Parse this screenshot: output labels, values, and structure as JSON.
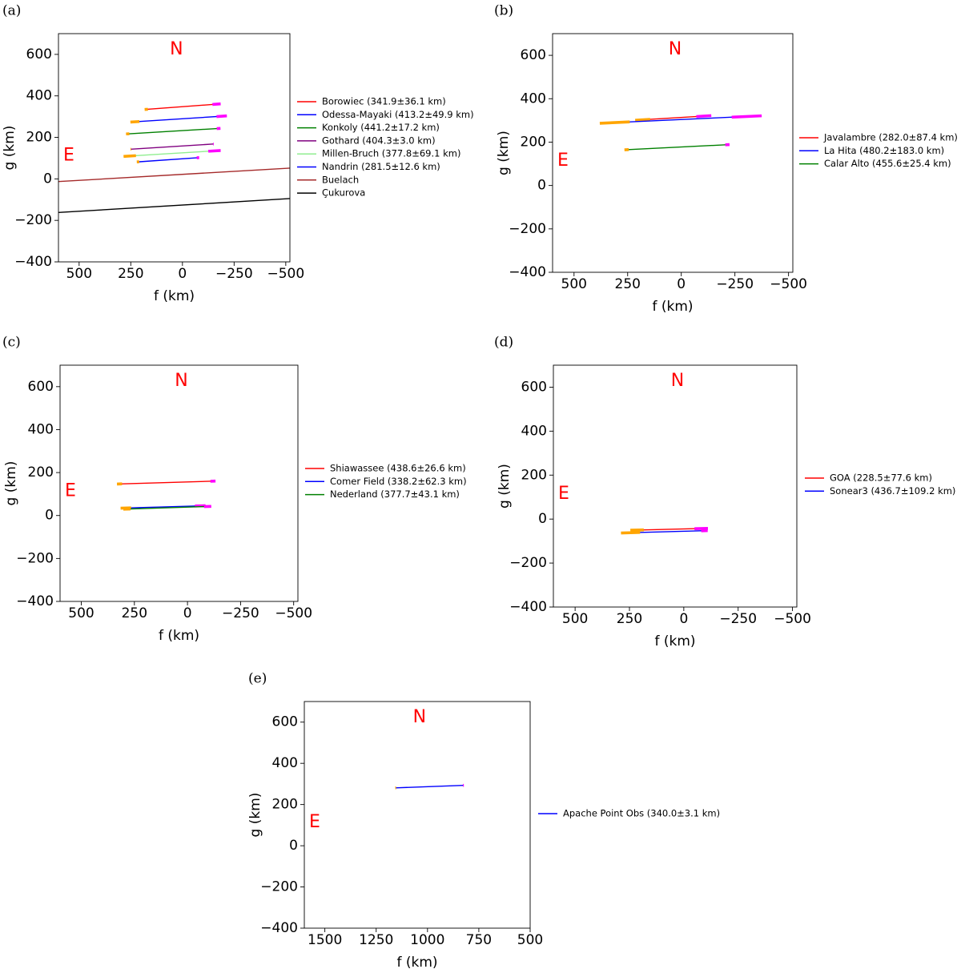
{
  "chart_data": [
    {
      "type": "line",
      "panel_label": "(a)",
      "xlabel": "f (km)",
      "ylabel": "g (km)",
      "xlim": [
        600,
        -520
      ],
      "ylim": [
        -400,
        700
      ],
      "xticks": [
        500,
        250,
        0,
        -250,
        -500
      ],
      "xtick_labels": [
        "500",
        "250",
        "0",
        "−250",
        "−500"
      ],
      "yticks": [
        -400,
        -200,
        0,
        200,
        400,
        600
      ],
      "ytick_labels": [
        "−400",
        "−200",
        "0",
        "200",
        "400",
        "600"
      ],
      "compass_n": "N",
      "compass_e": "E",
      "series": [
        {
          "name": "Borowiec (341.9±36.1 km)",
          "color": "#ff0000",
          "x": [
            175,
            -165
          ],
          "y": [
            335,
            360
          ],
          "err_start": 8,
          "err_end": 20
        },
        {
          "name": "Odessa-Mayaki (413.2±49.9 km)",
          "color": "#0000ff",
          "x": [
            230,
            -190
          ],
          "y": [
            275,
            302
          ],
          "err_start": 22,
          "err_end": 25
        },
        {
          "name": "Konkoly (441.2±17.2 km)",
          "color": "#008000",
          "x": [
            265,
            -175
          ],
          "y": [
            217,
            243
          ],
          "err_start": 8,
          "err_end": 9
        },
        {
          "name": "Gothard (404.3±3.0 km)",
          "color": "#800080",
          "x": [
            250,
            -150
          ],
          "y": [
            143,
            168
          ],
          "err_start": 1.5,
          "err_end": 1.5
        },
        {
          "name": "Millen-Bruch (377.8±69.1 km)",
          "color": "#90ee90",
          "x": [
            255,
            -155
          ],
          "y": [
            110,
            135
          ],
          "err_start": 30,
          "err_end": 30
        },
        {
          "name": "Nandrin (281.5±12.6 km)",
          "color": "#0000ff",
          "x": [
            215,
            -75
          ],
          "y": [
            82,
            102
          ],
          "err_start": 6,
          "err_end": 6
        },
        {
          "name": "Buelach",
          "color": "#a52a2a",
          "x": [
            600,
            -520
          ],
          "y": [
            -13,
            52
          ]
        },
        {
          "name": "Çukurova",
          "color": "#000000",
          "x": [
            600,
            -520
          ],
          "y": [
            -162,
            -95
          ]
        }
      ]
    },
    {
      "type": "line",
      "panel_label": "(b)",
      "xlabel": "f (km)",
      "ylabel": "g (km)",
      "xlim": [
        600,
        -520
      ],
      "ylim": [
        -400,
        700
      ],
      "xticks": [
        500,
        250,
        0,
        -250,
        -500
      ],
      "xtick_labels": [
        "500",
        "250",
        "0",
        "−250",
        "−500"
      ],
      "yticks": [
        -400,
        -200,
        0,
        200,
        400,
        600
      ],
      "ytick_labels": [
        "−400",
        "−200",
        "0",
        "200",
        "400",
        "600"
      ],
      "compass_n": "N",
      "compass_e": "E",
      "series": [
        {
          "name": "Javalambre (282.0±87.4 km)",
          "color": "#ff0000",
          "x": [
            180,
            -105
          ],
          "y": [
            303,
            320
          ],
          "err_start": 35,
          "err_end": 35
        },
        {
          "name": "La Hita (480.2±183.0 km)",
          "color": "#0000ff",
          "x": [
            310,
            -305
          ],
          "y": [
            290,
            318
          ],
          "err_start": 70,
          "err_end": 70
        },
        {
          "name": "Calar Alto (455.6±25.4 km)",
          "color": "#008000",
          "x": [
            255,
            -215
          ],
          "y": [
            165,
            188
          ],
          "err_start": 10,
          "err_end": 10
        }
      ]
    },
    {
      "type": "line",
      "panel_label": "(c)",
      "xlabel": "f (km)",
      "ylabel": "g (km)",
      "xlim": [
        600,
        -520
      ],
      "ylim": [
        -400,
        700
      ],
      "xticks": [
        500,
        250,
        0,
        -250,
        -500
      ],
      "xtick_labels": [
        "500",
        "250",
        "0",
        "−250",
        "−500"
      ],
      "yticks": [
        -400,
        -200,
        0,
        200,
        400,
        600
      ],
      "ytick_labels": [
        "−400",
        "−200",
        "0",
        "200",
        "400",
        "600"
      ],
      "compass_n": "N",
      "compass_e": "E",
      "series": [
        {
          "name": "Shiawassee (438.6±26.6 km)",
          "color": "#ff0000",
          "x": [
            320,
            -120
          ],
          "y": [
            147,
            160
          ],
          "err_start": 12,
          "err_end": 12
        },
        {
          "name": "Comer Field (338.2±62.3 km)",
          "color": "#0000ff",
          "x": [
            290,
            -60
          ],
          "y": [
            35,
            45
          ],
          "err_start": 25,
          "err_end": 25
        },
        {
          "name": "Nederland (377.7±43.1 km)",
          "color": "#008000",
          "x": [
            285,
            -95
          ],
          "y": [
            30,
            42
          ],
          "err_start": 17,
          "err_end": 17
        }
      ]
    },
    {
      "type": "line",
      "panel_label": "(d)",
      "xlabel": "f (km)",
      "ylabel": "g (km)",
      "xlim": [
        600,
        -520
      ],
      "ylim": [
        -400,
        700
      ],
      "xticks": [
        500,
        250,
        0,
        -250,
        -500
      ],
      "xtick_labels": [
        "500",
        "250",
        "0",
        "−250",
        "−500"
      ],
      "yticks": [
        -400,
        -200,
        0,
        200,
        400,
        600
      ],
      "ytick_labels": [
        "−400",
        "−200",
        "0",
        "200",
        "400",
        "600"
      ],
      "compass_n": "N",
      "compass_e": "E",
      "series": [
        {
          "name": "GOA (228.5±77.6 km)",
          "color": "#ff0000",
          "x": [
            215,
            -80
          ],
          "y": [
            -50,
            -43
          ],
          "err_start": 31,
          "err_end": 31
        },
        {
          "name": "Sonear3 (436.7±109.2 km)",
          "color": "#0000ff",
          "x": [
            245,
            -95
          ],
          "y": [
            -62,
            -53
          ],
          "err_start": 44,
          "err_end": 15
        }
      ]
    },
    {
      "type": "line",
      "panel_label": "(e)",
      "xlabel": "f (km)",
      "ylabel": "g (km)",
      "xlim": [
        1600,
        500
      ],
      "ylim": [
        -400,
        700
      ],
      "xticks": [
        1500,
        1250,
        1000,
        750,
        500
      ],
      "xtick_labels": [
        "1500",
        "1250",
        "1000",
        "750",
        "500"
      ],
      "yticks": [
        -400,
        -200,
        0,
        200,
        400,
        600
      ],
      "ytick_labels": [
        "−400",
        "−200",
        "0",
        "200",
        "400",
        "600"
      ],
      "compass_n": "N",
      "compass_e": "E",
      "series": [
        {
          "name": "Apache Point Obs (340.0±3.1 km)",
          "color": "#0000ff",
          "x": [
            1155,
            825
          ],
          "y": [
            281,
            293
          ],
          "err_start": 2,
          "err_end": 2
        }
      ]
    }
  ]
}
